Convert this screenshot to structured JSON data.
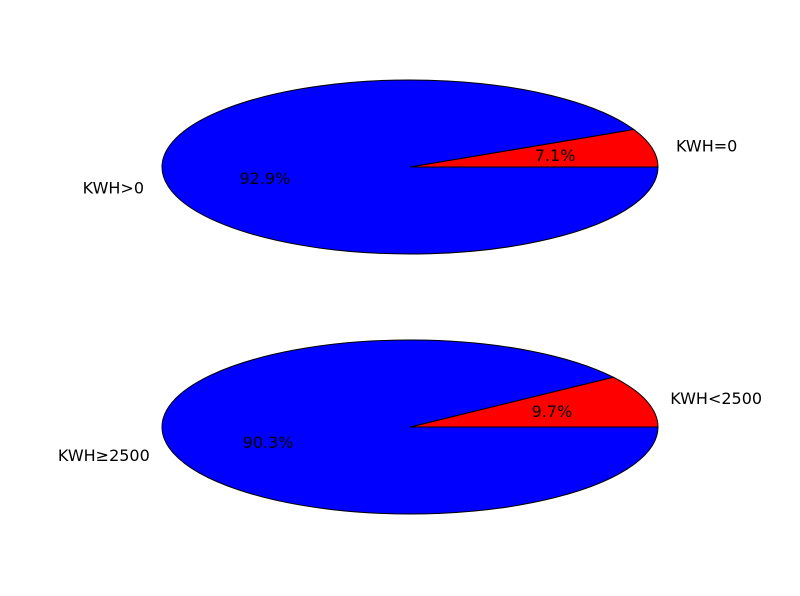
{
  "chart_data": [
    {
      "type": "pie",
      "slices": [
        {
          "label": "KWH=0",
          "value": 7.1,
          "pct_label": "7.1%",
          "color": "#ff0000"
        },
        {
          "label": "KWH>0",
          "value": 92.9,
          "pct_label": "92.9%",
          "color": "#0000ff"
        }
      ]
    },
    {
      "type": "pie",
      "slices": [
        {
          "label": "KWH<2500",
          "value": 9.7,
          "pct_label": "9.7%",
          "color": "#ff0000"
        },
        {
          "label": "KWH≥2500",
          "value": 90.3,
          "pct_label": "90.3%",
          "color": "#0000ff"
        }
      ]
    }
  ]
}
